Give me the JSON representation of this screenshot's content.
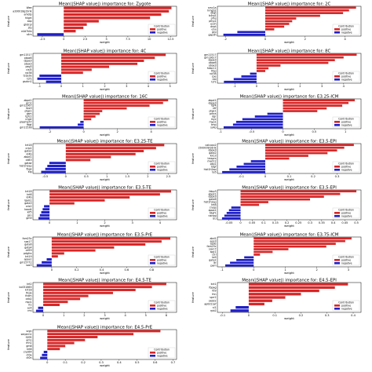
{
  "chart_data": [
    {
      "type": "bar",
      "orientation": "horizontal",
      "title": "Mean(|SHAP value|) importance for: Zygote",
      "xlabel": "weight",
      "ylabel": "feature",
      "categories": [
        "Wee",
        "a330018g19rik",
        "amdip",
        "hkgrt",
        "sbp",
        "ghdrpl",
        "zfp",
        "e4d7htb",
        "s4rs"
      ],
      "values": [
        12.6,
        12.3,
        11.4,
        10.1,
        4.1,
        2.7,
        2.3,
        1.4,
        -3.1
      ],
      "xlim": [
        -3.6,
        13.2
      ],
      "xticks": [
        -2.5,
        0.0,
        2.5,
        5.0,
        7.5,
        10.0,
        12.5
      ]
    },
    {
      "type": "bar",
      "orientation": "horizontal",
      "title": "Mean(|SHAP value|) importance for: 2C",
      "xlabel": "weight",
      "ylabel": "feature",
      "categories": [
        "smc1a",
        "hmgb2",
        "dkgt",
        "b4rg1",
        "pfns",
        "pfnp1",
        "ecsh",
        "dnpt",
        "e1a",
        "grp",
        "gapdh"
      ],
      "values": [
        4.55,
        4.2,
        3.9,
        2.75,
        1.55,
        1.35,
        1.2,
        0.95,
        0.45,
        -1.4,
        -2.1
      ],
      "xlim": [
        -2.4,
        4.8
      ],
      "xticks": [
        -2,
        0,
        2,
        4
      ]
    },
    {
      "type": "bar",
      "orientation": "horizontal",
      "title": "Mean(|SHAP value|) importance for: 4C",
      "xlabel": "weight",
      "ylabel": "feature",
      "categories": [
        "gm11517",
        "obox6",
        "dppa3",
        "obox3",
        "peg3",
        "cisl5",
        "rpl38",
        "tcea3a",
        "tcf1",
        "gscbn1"
      ],
      "values": [
        4.8,
        4.3,
        3.8,
        3.5,
        2.2,
        1.4,
        1.0,
        -1.0,
        -1.1,
        -0.7
      ],
      "xlim": [
        -1.3,
        5.3
      ],
      "xticks": [
        -1,
        0,
        1,
        2,
        3,
        4,
        5
      ]
    },
    {
      "type": "bar",
      "orientation": "horizontal",
      "title": "Mean(|SHAP value|) importance for: 8C",
      "xlabel": "weight",
      "ylabel": "feature",
      "categories": [
        "gm11517",
        "gm13617",
        "dppa3",
        "obox6",
        "obox3",
        "hdac11",
        "tfep",
        "rpl38",
        "cpe",
        "rsb",
        "tcf1"
      ],
      "values": [
        4.6,
        4.0,
        3.6,
        3.3,
        1.1,
        0.55,
        0.4,
        -0.3,
        -0.7,
        -1.05,
        -1.5
      ],
      "xlim": [
        -1.8,
        4.8
      ],
      "xticks": [
        -1,
        0,
        1,
        2,
        3,
        4
      ]
    },
    {
      "type": "bar",
      "orientation": "horizontal",
      "title": "Mean(|SHAP value|) importance for: 16C",
      "xlabel": "weight",
      "ylabel": "feature",
      "categories": [
        "abpd1",
        "grn1",
        "gm12367",
        "tbx3",
        "ptgs1",
        "gsm",
        "tgfc2",
        "crypt",
        "plasma57",
        "fbgt",
        "gm11538"
      ],
      "values": [
        5.0,
        4.7,
        3.9,
        2.55,
        1.1,
        0.95,
        0.7,
        0.45,
        -0.2,
        -0.35,
        -2.6
      ],
      "xlim": [
        -3.0,
        5.5
      ],
      "xticks": [
        -2,
        0,
        2,
        4
      ]
    },
    {
      "type": "bar",
      "orientation": "horizontal",
      "title": "Mean(|SHAP value|) importance for: E3.25-ICM",
      "xlabel": "weight",
      "ylabel": "feature",
      "categories": [
        "abpd1",
        "dppa3",
        "fgf4",
        "ntf",
        "ptgs1",
        "prkra",
        "dgr",
        "myc",
        "myp1",
        "tmp",
        "ss4p"
      ],
      "values": [
        1.15,
        1.05,
        0.95,
        0.7,
        0.55,
        -0.25,
        -0.45,
        -0.65,
        -0.75,
        -0.8,
        -0.95
      ],
      "xlim": [
        -1.05,
        1.25
      ],
      "xticks": [
        -1.0,
        -0.5,
        0.0,
        0.5,
        1.0
      ]
    },
    {
      "type": "bar",
      "orientation": "horizontal",
      "title": "Mean(|SHAP value|) importance for: E3.25-TE",
      "xlabel": "weight",
      "ylabel": "feature",
      "categories": [
        "krt18",
        "crip1",
        "gata2",
        "id4b",
        "abpd1",
        "cd83",
        "gatae",
        "hist1h2ap",
        "fbgx",
        "klg"
      ],
      "values": [
        2.4,
        2.2,
        1.9,
        1.7,
        1.1,
        0.6,
        -0.4,
        -0.45,
        -0.5,
        -0.6
      ],
      "xlim": [
        -0.8,
        2.7
      ],
      "xticks": [
        -0.5,
        0.0,
        0.5,
        1.0,
        1.5,
        2.0,
        2.5
      ]
    },
    {
      "type": "bar",
      "orientation": "horizontal",
      "title": "Mean(|SHAP value|) importance for: E3.5-EPI",
      "xlabel": "weight",
      "ylabel": "feature",
      "categories": [
        "calcoco2",
        "1500009l16rik",
        "dppa3",
        "gata2",
        "kk13",
        "tmsprs",
        "med12",
        "pkp1",
        "tdgf",
        "hist1h2ap",
        "ta5"
      ],
      "values": [
        0.37,
        0.33,
        0.3,
        0.26,
        0.18,
        0.1,
        -0.06,
        -0.09,
        -0.12,
        -0.15,
        -0.18
      ],
      "xlim": [
        -0.2,
        0.4
      ],
      "xticks": [
        -0.1,
        0.0,
        0.1,
        0.2,
        0.3
      ]
    },
    {
      "type": "bar",
      "orientation": "horizontal",
      "title": "Mean(|SHAP value|) importance for: E3.5-TE",
      "xlabel": "weight",
      "ylabel": "feature",
      "categories": [
        "krt18",
        "krt8",
        "id4b",
        "lgals1",
        "gata3",
        "cdx2",
        "tead4",
        "klf5",
        "gsn",
        "gm9"
      ],
      "values": [
        4.4,
        4.0,
        2.9,
        2.0,
        0.9,
        -0.2,
        -0.25,
        -0.3,
        -0.35,
        -0.4
      ],
      "xlim": [
        -0.6,
        4.6
      ],
      "xticks": [
        0,
        1,
        2,
        3,
        4
      ]
    },
    {
      "type": "bar",
      "orientation": "horizontal",
      "title": "Mean(|SHAP value|) importance for: E3.5-EPI",
      "xlabel": "weight",
      "ylabel": "feature",
      "categories": [
        "fabp3",
        "abpd1",
        "dppa3",
        "gata6",
        "hist1h2ap",
        "krt8",
        "crygs",
        "apoa1",
        "tdgf1",
        "nanog",
        "lzu"
      ],
      "values": [
        0.5,
        0.43,
        0.36,
        0.3,
        0.12,
        0.08,
        -0.04,
        -0.05,
        -0.06,
        -0.07,
        -0.08
      ],
      "xlim": [
        -0.1,
        0.52
      ],
      "xticks": [
        -0.05,
        0.0,
        0.05,
        0.1,
        0.15,
        0.2,
        0.25,
        0.3,
        0.35,
        0.4,
        0.45,
        0.5
      ]
    },
    {
      "type": "bar",
      "orientation": "horizontal",
      "title": "Mean(|SHAP value|) importance for: E3.5-PrE",
      "xlabel": "weight",
      "ylabel": "feature",
      "categories": [
        "fam25c",
        "sox17",
        "gata6",
        "gata4",
        "cd59",
        "pdgfra",
        "krt19",
        "apoa1",
        "gm15772",
        "sox3"
      ],
      "values": [
        0.95,
        0.88,
        0.75,
        0.5,
        0.35,
        0.1,
        0.05,
        -0.04,
        -0.08,
        -0.12
      ],
      "xlim": [
        -0.15,
        1.0
      ],
      "xticks": [
        0.0,
        0.2,
        0.4,
        0.6,
        0.8
      ]
    },
    {
      "type": "bar",
      "orientation": "horizontal",
      "title": "Mean(|SHAP value|) importance for: E3.75-ICM",
      "xlabel": "weight",
      "ylabel": "feature",
      "categories": [
        "abd1",
        "apo3",
        "apoe",
        "fam25c",
        "sox17",
        "spp1",
        "ctrl",
        "ta9",
        "gata2",
        "ltr",
        "pam"
      ],
      "values": [
        3.1,
        2.9,
        2.6,
        2.3,
        1.1,
        0.6,
        0.2,
        -0.3,
        -0.55,
        -0.75,
        -0.9
      ],
      "xlim": [
        -1.15,
        3.4
      ],
      "xticks": [
        -1,
        0,
        1,
        2,
        3
      ]
    },
    {
      "type": "bar",
      "orientation": "horizontal",
      "title": "Mean(|SHAP value|) importance for: E4.5-TE",
      "xlabel": "weight",
      "ylabel": "feature",
      "categories": [
        "krt2",
        "bc051665",
        "krt18",
        "flrpb",
        "fndm",
        "cdb2",
        "mpl1",
        "rt1",
        "ac4",
        "rml"
      ],
      "values": [
        6.0,
        5.3,
        4.5,
        3.4,
        2.2,
        1.8,
        1.2,
        0.8,
        -0.25,
        -0.35
      ],
      "xlim": [
        -0.5,
        6.5
      ],
      "xticks": [
        0,
        1,
        2,
        3,
        4,
        5,
        6
      ]
    },
    {
      "type": "bar",
      "orientation": "horizontal",
      "title": "Mean(|SHAP value|) importance for: E4.5-EPI",
      "xlabel": "weight",
      "ylabel": "feature",
      "categories": [
        "kct1",
        "fbpag",
        "fd9",
        "thn",
        "sprr2",
        "skdd2",
        "ap0d11af",
        "sl1",
        "rpb2"
      ],
      "values": [
        0.38,
        0.33,
        0.27,
        0.2,
        0.14,
        0.09,
        0.06,
        -0.05,
        -0.07
      ],
      "xlim": [
        -0.12,
        0.43
      ],
      "xticks": [
        -0.1,
        0.0,
        0.1,
        0.2,
        0.3,
        0.4
      ]
    },
    {
      "type": "bar",
      "orientation": "horizontal",
      "title": "Mean(|SHAP value|) importance for: E4.5-PrE",
      "xlabel": "weight",
      "ylabel": "feature",
      "categories": [
        "srgn",
        "serpinh1",
        "apoe",
        "amn",
        "rhh1",
        "gm8",
        "krt8",
        "cryz64",
        "ct0a",
        "ct0n"
      ],
      "values": [
        0.63,
        0.48,
        0.28,
        0.21,
        0.15,
        0.1,
        0.07,
        -0.02,
        -0.03,
        -0.04
      ],
      "xlim": [
        -0.08,
        0.72
      ],
      "xticks": [
        0.0,
        0.1,
        0.2,
        0.3,
        0.4,
        0.5,
        0.6,
        0.7
      ]
    }
  ],
  "legend": {
    "title": "Contribution",
    "positive_label": "positive",
    "negative_label": "negative",
    "placement": "lower-right"
  },
  "colors": {
    "positive": "#d62728",
    "negative": "#1f1fc8"
  }
}
